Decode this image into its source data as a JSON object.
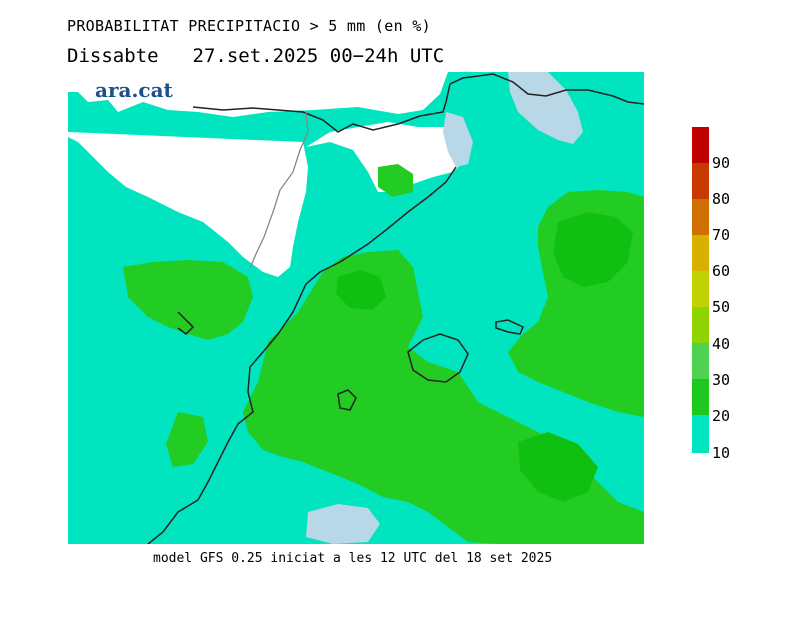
{
  "title": {
    "line1": "PROBABILITAT PRECIPITACIO > 5 mm (en %)",
    "day": "Dissabte",
    "date_range": "27.set.2025 00−24h UTC"
  },
  "logo": {
    "text": "ara.cat"
  },
  "footer": {
    "text": "model GFS 0.25 iniciat a les 12 UTC del 18 set 2025"
  },
  "legend": {
    "levels": [
      {
        "label": "10",
        "color": "#00e5c0"
      },
      {
        "label": "20",
        "color": "#00d100"
      },
      {
        "label": "30",
        "color": "#1ec81e"
      },
      {
        "label": "40",
        "color": "#4fd24f"
      },
      {
        "label": "50",
        "color": "#8fd400"
      },
      {
        "label": "60",
        "color": "#c0d200"
      },
      {
        "label": "70",
        "color": "#d8b000"
      },
      {
        "label": "80",
        "color": "#d07000"
      },
      {
        "label": "90",
        "color": "#c83a00"
      }
    ],
    "top_color": "#c00000",
    "low_color": "#b8d8e8",
    "land_gap_color": "#ffffff"
  }
}
